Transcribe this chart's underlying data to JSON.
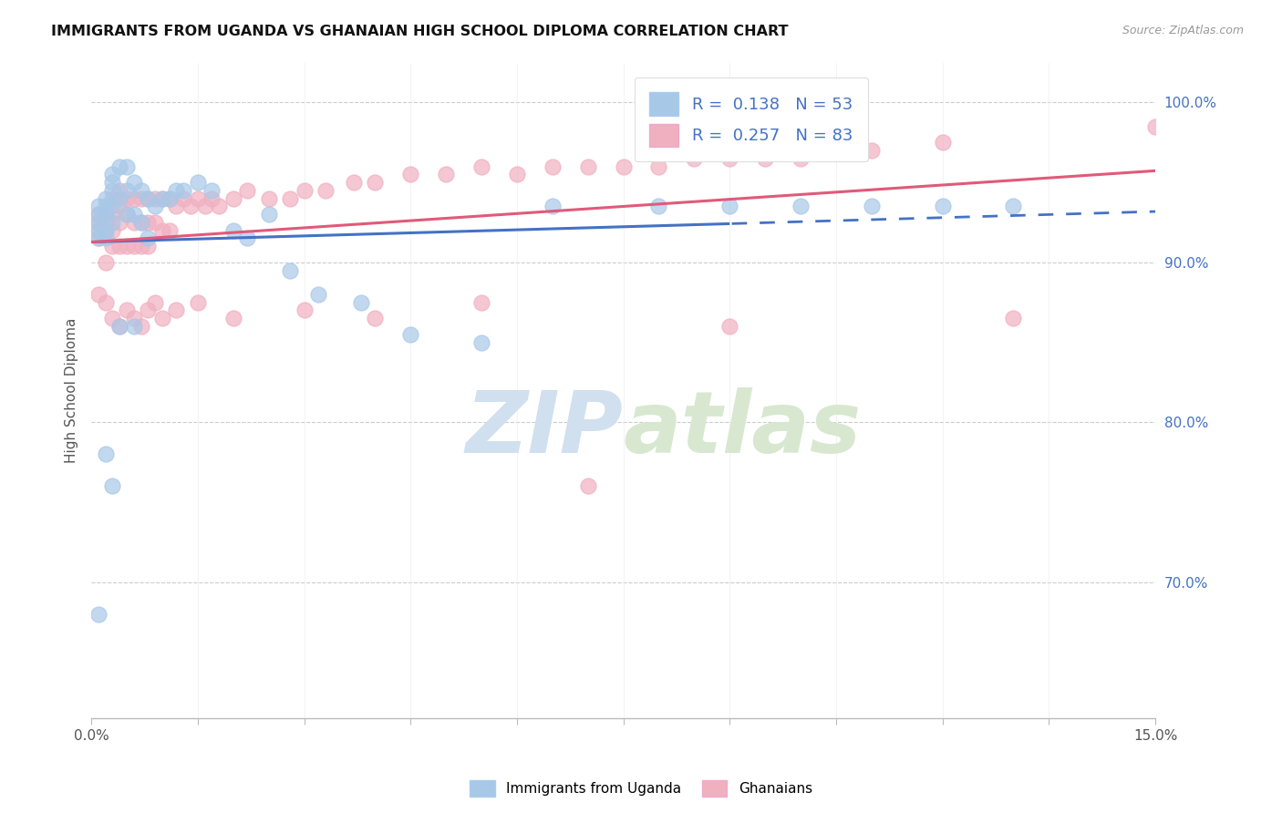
{
  "title": "IMMIGRANTS FROM UGANDA VS GHANAIAN HIGH SCHOOL DIPLOMA CORRELATION CHART",
  "source": "Source: ZipAtlas.com",
  "ylabel": "High School Diploma",
  "y_tick_vals": [
    0.7,
    0.8,
    0.9,
    1.0
  ],
  "x_lim": [
    0.0,
    0.15
  ],
  "y_lim": [
    0.615,
    1.025
  ],
  "legend_blue_r": "0.138",
  "legend_blue_n": "53",
  "legend_pink_r": "0.257",
  "legend_pink_n": "83",
  "legend_label_blue": "Immigrants from Uganda",
  "legend_label_pink": "Ghanaians",
  "blue_color": "#a8c8e8",
  "pink_color": "#f0b0c0",
  "trend_blue_color": "#4472c4",
  "trend_pink_color": "#e05a7a",
  "watermark_color": "#d0e0ef",
  "background_color": "#ffffff",
  "blue_x": [
    0.001,
    0.001,
    0.001,
    0.001,
    0.001,
    0.002,
    0.002,
    0.002,
    0.002,
    0.002,
    0.003,
    0.003,
    0.003,
    0.003,
    0.003,
    0.004,
    0.004,
    0.005,
    0.005,
    0.005,
    0.006,
    0.006,
    0.007,
    0.007,
    0.008,
    0.008,
    0.009,
    0.01,
    0.011,
    0.012,
    0.013,
    0.015,
    0.017,
    0.02,
    0.022,
    0.025,
    0.028,
    0.032,
    0.038,
    0.045,
    0.055,
    0.065,
    0.08,
    0.09,
    0.1,
    0.11,
    0.12,
    0.13,
    0.001,
    0.002,
    0.003,
    0.004,
    0.006
  ],
  "blue_y": [
    0.935,
    0.93,
    0.925,
    0.92,
    0.915,
    0.94,
    0.935,
    0.93,
    0.92,
    0.915,
    0.955,
    0.95,
    0.945,
    0.935,
    0.925,
    0.96,
    0.94,
    0.96,
    0.945,
    0.93,
    0.95,
    0.93,
    0.945,
    0.925,
    0.94,
    0.915,
    0.935,
    0.94,
    0.94,
    0.945,
    0.945,
    0.95,
    0.945,
    0.92,
    0.915,
    0.93,
    0.895,
    0.88,
    0.875,
    0.855,
    0.85,
    0.935,
    0.935,
    0.935,
    0.935,
    0.935,
    0.935,
    0.935,
    0.68,
    0.78,
    0.76,
    0.86,
    0.86
  ],
  "pink_x": [
    0.001,
    0.001,
    0.001,
    0.001,
    0.002,
    0.002,
    0.002,
    0.002,
    0.003,
    0.003,
    0.003,
    0.003,
    0.004,
    0.004,
    0.004,
    0.004,
    0.005,
    0.005,
    0.005,
    0.006,
    0.006,
    0.006,
    0.007,
    0.007,
    0.007,
    0.008,
    0.008,
    0.008,
    0.009,
    0.009,
    0.01,
    0.01,
    0.011,
    0.011,
    0.012,
    0.013,
    0.014,
    0.015,
    0.016,
    0.017,
    0.018,
    0.02,
    0.022,
    0.025,
    0.028,
    0.03,
    0.033,
    0.037,
    0.04,
    0.045,
    0.05,
    0.055,
    0.06,
    0.065,
    0.07,
    0.075,
    0.08,
    0.085,
    0.09,
    0.095,
    0.1,
    0.11,
    0.12,
    0.001,
    0.002,
    0.003,
    0.004,
    0.005,
    0.006,
    0.007,
    0.008,
    0.009,
    0.01,
    0.012,
    0.015,
    0.02,
    0.03,
    0.04,
    0.055,
    0.07,
    0.09,
    0.13,
    0.15
  ],
  "pink_y": [
    0.93,
    0.925,
    0.92,
    0.915,
    0.93,
    0.925,
    0.92,
    0.9,
    0.94,
    0.93,
    0.92,
    0.91,
    0.945,
    0.935,
    0.925,
    0.91,
    0.94,
    0.93,
    0.91,
    0.94,
    0.925,
    0.91,
    0.94,
    0.925,
    0.91,
    0.94,
    0.925,
    0.91,
    0.94,
    0.925,
    0.94,
    0.92,
    0.94,
    0.92,
    0.935,
    0.94,
    0.935,
    0.94,
    0.935,
    0.94,
    0.935,
    0.94,
    0.945,
    0.94,
    0.94,
    0.945,
    0.945,
    0.95,
    0.95,
    0.955,
    0.955,
    0.96,
    0.955,
    0.96,
    0.96,
    0.96,
    0.96,
    0.965,
    0.965,
    0.965,
    0.965,
    0.97,
    0.975,
    0.88,
    0.875,
    0.865,
    0.86,
    0.87,
    0.865,
    0.86,
    0.87,
    0.875,
    0.865,
    0.87,
    0.875,
    0.865,
    0.87,
    0.865,
    0.875,
    0.76,
    0.86,
    0.865,
    0.985
  ]
}
